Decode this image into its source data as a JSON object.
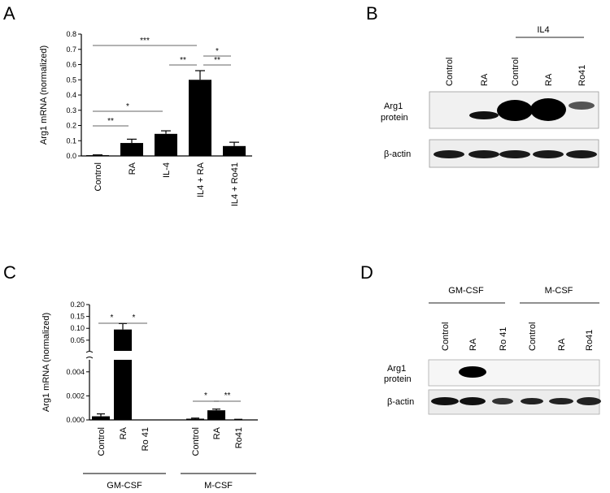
{
  "panels": {
    "A": {
      "letter": "A"
    },
    "B": {
      "letter": "B",
      "bracket_label": "IL4",
      "lanes": [
        "Control",
        "RA",
        "Control",
        "RA",
        "Ro41"
      ],
      "rows": [
        {
          "label": [
            "Arg1",
            "protein"
          ]
        },
        {
          "label": [
            "β-actin"
          ]
        }
      ]
    },
    "C": {
      "letter": "C"
    },
    "D": {
      "letter": "D",
      "groups": [
        "GM-CSF",
        "M-CSF"
      ],
      "lanes": [
        "Control",
        "RA",
        "Ro 41",
        "Control",
        "RA",
        "Ro41"
      ],
      "rows": [
        {
          "label": [
            "Arg1",
            "protein"
          ]
        },
        {
          "label": [
            "β-actin"
          ]
        }
      ]
    }
  },
  "chart_data": [
    {
      "panel": "A",
      "type": "bar",
      "categories": [
        "Control",
        "RA",
        "IL-4",
        "IL4 + RA",
        "IL4 + Ro41"
      ],
      "values": [
        0.005,
        0.085,
        0.145,
        0.5,
        0.065
      ],
      "errors": [
        0.002,
        0.025,
        0.02,
        0.06,
        0.025
      ],
      "ylabel": "Arg1 mRNA  (normalized)",
      "ylim": [
        0,
        0.8
      ],
      "yticks": [
        "0.0",
        "0.1",
        "0.2",
        "0.3",
        "0.4",
        "0.5",
        "0.6",
        "0.7",
        "0.8"
      ],
      "significance": [
        {
          "from": 0,
          "to": 3,
          "label": "***"
        },
        {
          "from": 3,
          "to": 4,
          "label": "*"
        },
        {
          "from": 2,
          "to": 3,
          "label": "**"
        },
        {
          "from": 3,
          "to": 4,
          "label": "**"
        },
        {
          "from": 0,
          "to": 2,
          "label": "*"
        },
        {
          "from": 0,
          "to": 1,
          "label": "**"
        }
      ]
    },
    {
      "panel": "C",
      "type": "bar",
      "y_axis_break": true,
      "categories": [
        "Control",
        "RA",
        "Ro 41",
        "Control",
        "RA",
        "Ro41"
      ],
      "groups": [
        {
          "name": "GM-CSF",
          "members": [
            0,
            1,
            2
          ]
        },
        {
          "name": "M-CSF",
          "members": [
            3,
            4,
            5
          ]
        }
      ],
      "values": [
        0.0003,
        0.095,
        0.0,
        0.0001,
        0.0008,
        3e-05
      ],
      "errors": [
        0.0002,
        0.025,
        0.0,
        5e-05,
        0.0001,
        2e-05
      ],
      "ylabel": "Arg1 mRNA  (normalized)",
      "ylim_lower": [
        0,
        0.005
      ],
      "ylim_upper": [
        0.005,
        0.2
      ],
      "yticks_lower": [
        "0.000",
        "0.002",
        "0.004"
      ],
      "yticks_upper": [
        "0.05",
        "0.10",
        "0.15",
        "0.20"
      ],
      "significance": [
        {
          "from": 0,
          "to": 1,
          "label": "*"
        },
        {
          "from": 1,
          "to": 2,
          "label": "*"
        },
        {
          "from": 3,
          "to": 4,
          "label": "*"
        },
        {
          "from": 4,
          "to": 5,
          "label": "**"
        }
      ]
    }
  ]
}
